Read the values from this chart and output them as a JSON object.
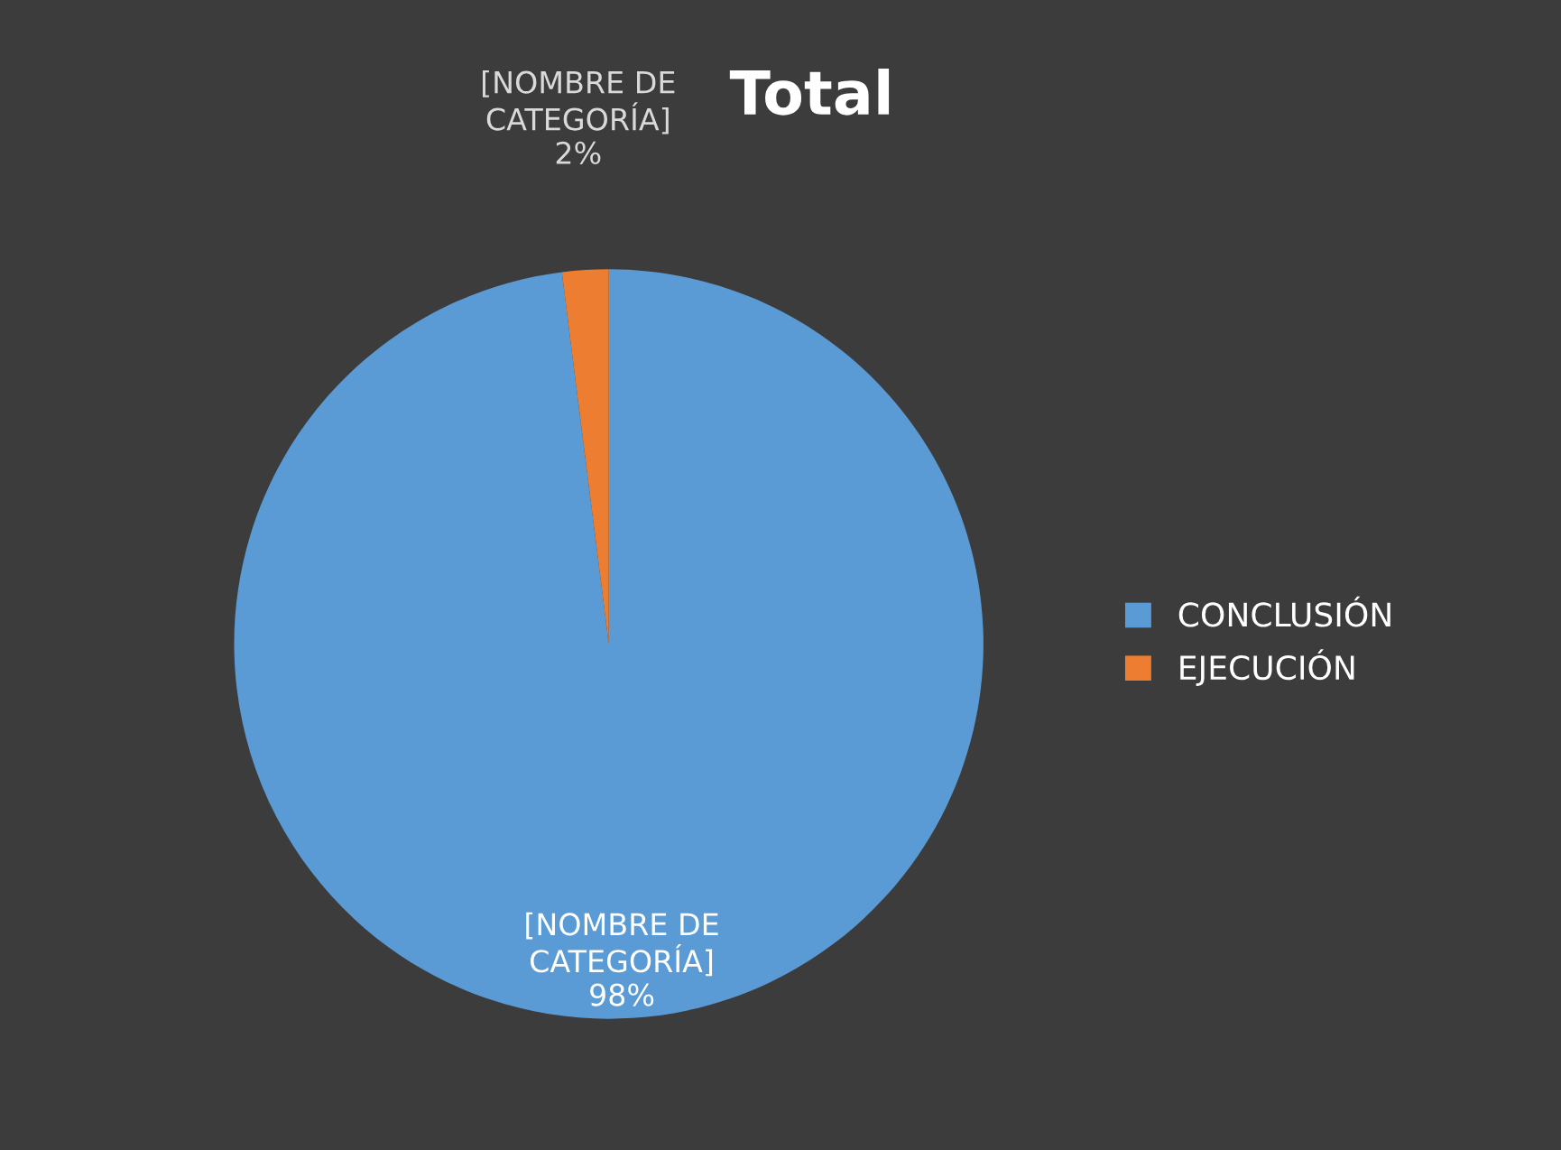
{
  "chart_data": {
    "type": "pie",
    "title": "Total",
    "categories": [
      "CONCLUSIÓN",
      "EJECUCIÓN"
    ],
    "values": [
      98,
      2
    ],
    "colors": [
      "#5b9bd5",
      "#ed7d31"
    ],
    "value_labels": [
      "[NOMBRE DE\nCATEGORÍA]\n98%",
      "[NOMBRE DE\nCATEGORÍA]\n2%"
    ],
    "legend": "right"
  }
}
